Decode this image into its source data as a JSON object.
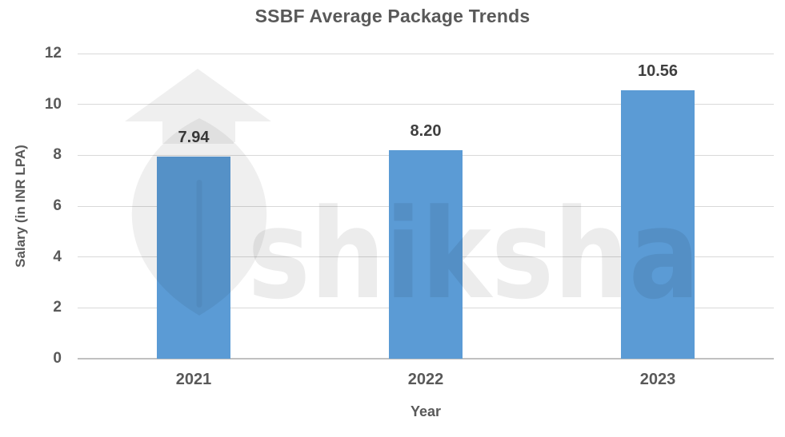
{
  "watermark": {
    "text": "shiksha"
  },
  "chart_data": {
    "type": "bar",
    "title": "SSBF Average Package Trends",
    "categories": [
      "2021",
      "2022",
      "2023"
    ],
    "values": [
      7.94,
      8.2,
      10.56
    ],
    "value_labels": [
      "7.94",
      "8.20",
      "10.56"
    ],
    "xlabel": "Year",
    "ylabel": "Salary (in INR LPA)",
    "ylim": [
      0,
      12
    ],
    "yticks": [
      0,
      2,
      4,
      6,
      8,
      10,
      12
    ],
    "grid": true,
    "legend_position": "none",
    "bar_color": "#5B9BD5",
    "title_color": "#595959",
    "tick_color": "#595959",
    "value_label_color": "#3F3F3F",
    "gridline_color": "#D9D9D9",
    "axisline_color": "#C0C0C0"
  }
}
